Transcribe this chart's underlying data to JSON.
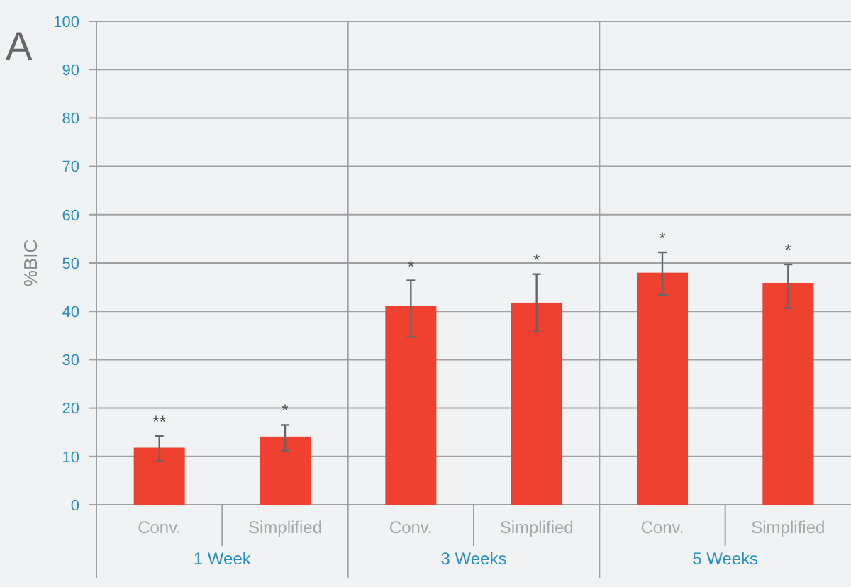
{
  "chart_data": {
    "type": "bar",
    "categories": [
      "Conv.",
      "Simplified",
      "Conv.",
      "Simplified",
      "Conv.",
      "Simplified"
    ],
    "values": [
      11.8,
      14.1,
      41.2,
      41.8,
      48.0,
      45.9
    ],
    "errors": [
      [
        9.0,
        14.2
      ],
      [
        11.2,
        16.5
      ],
      [
        34.7,
        46.4
      ],
      [
        35.8,
        47.7
      ],
      [
        43.4,
        52.2
      ],
      [
        40.7,
        49.7
      ]
    ],
    "value_labels": [
      "**",
      "*",
      "*",
      "*",
      "*",
      "*"
    ],
    "color": "#ee4130",
    "ylabel": "%BIC",
    "ylim": [
      0,
      100
    ],
    "yticks": [
      0,
      10,
      20,
      30,
      40,
      50,
      60,
      70,
      80,
      90,
      100
    ],
    "grid": "y",
    "annotations": [
      "A",
      "1 Week",
      "3 Weeks",
      "5 Weeks"
    ]
  }
}
